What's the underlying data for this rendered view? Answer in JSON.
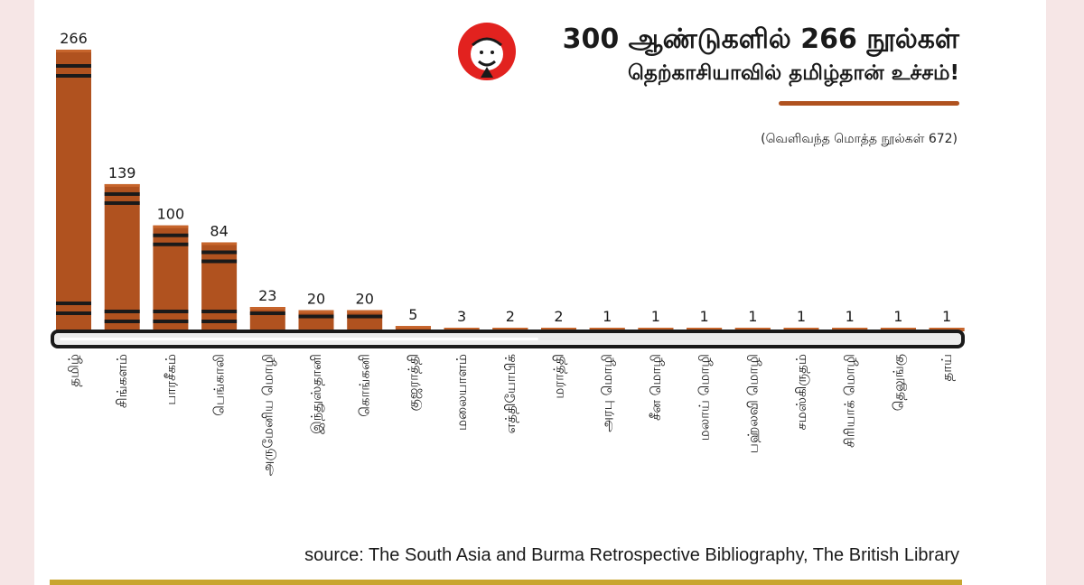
{
  "header": {
    "title": "300 ஆண்டுகளில் 266 நூல்கள்",
    "subtitle": "தெற்காசியாவில் தமிழ்தான் உச்சம்!",
    "note": "(வெளிவந்த மொத்த நூல்கள் 672)"
  },
  "source": "source: The South Asia and Burma Retrospective Bibliography, The British Library",
  "colors": {
    "bar": "#b0521f",
    "bar_top": "#c7652c",
    "band": "#1a1a1a",
    "shelf_fill": "#ececec",
    "shelf_outline": "#1a1a1a",
    "background": "#f6e6e6",
    "footer_line": "#c8a530",
    "logo": "#e2221f"
  },
  "logo_icon": "cartoon-face-logo-icon",
  "chart_data": {
    "type": "bar",
    "title": "300 ஆண்டுகளில் 266 நூல்கள்",
    "subtitle": "தெற்காசியாவில் தமிழ்தான் உச்சம்!",
    "xlabel": "",
    "ylabel": "",
    "ylim": [
      0,
      266
    ],
    "grid": false,
    "categories": [
      "தமிழ்",
      "சிங்களம்",
      "பாரசீகம்",
      "பெங்காலி",
      "அருமேனிய மொழி",
      "இந்துஸ்தானி",
      "கொங்கனி",
      "குஜராத்தி",
      "மலையாளம்",
      "எத்தியோபிக்",
      "மராத்தி",
      "அரபு மொழி",
      "சீன மொழி",
      "மலாய் மொழி",
      "பஹ்லவி மொழி",
      "சமஸ்கிருதம்",
      "சிரியாக் மொழி",
      "தெலுங்கு",
      "தாய்"
    ],
    "values": [
      266,
      139,
      100,
      84,
      23,
      20,
      20,
      5,
      3,
      2,
      2,
      1,
      1,
      1,
      1,
      1,
      1,
      1,
      1
    ],
    "value_labels": [
      "266",
      "139",
      "100",
      "84",
      "23",
      "20",
      "20",
      "5",
      "3",
      "2",
      "2",
      "1",
      "1",
      "1",
      "1",
      "1",
      "1",
      "1",
      "1"
    ]
  }
}
